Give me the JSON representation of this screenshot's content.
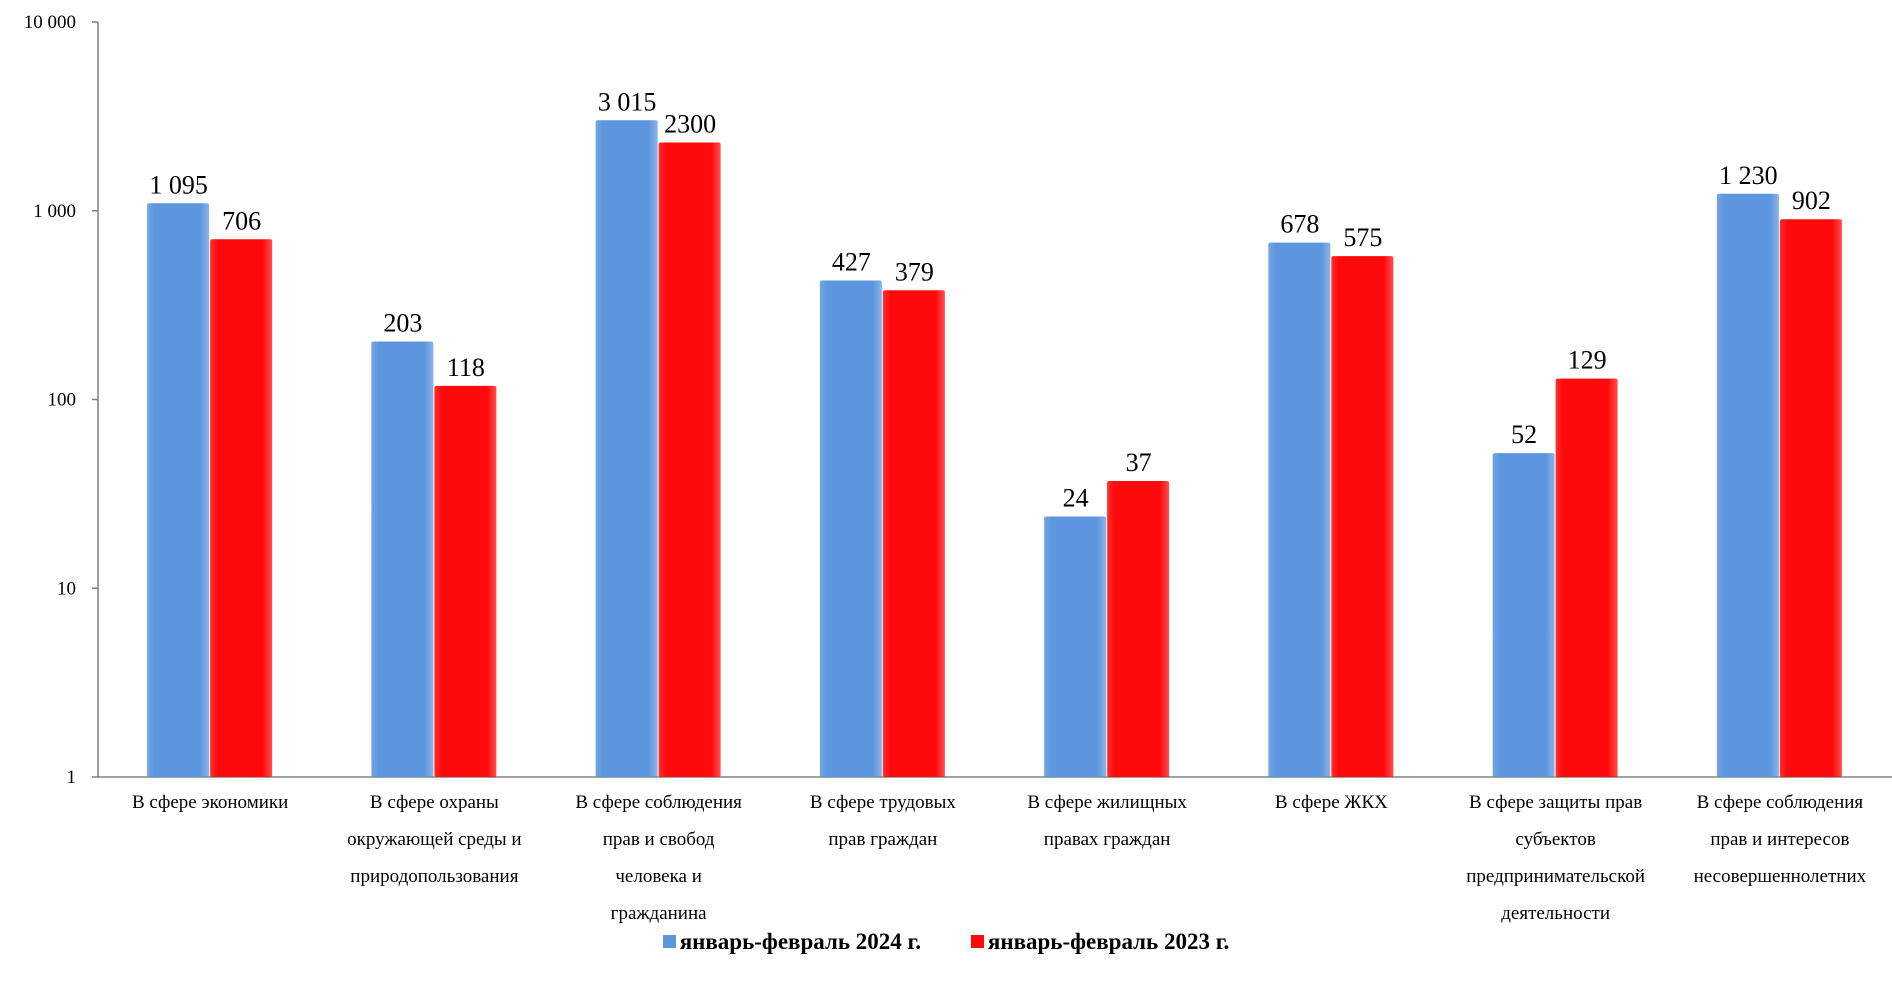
{
  "chart_data": {
    "type": "bar",
    "yscale": "log",
    "ylim": [
      1,
      10000
    ],
    "ytick_labels": [
      "1",
      "10",
      "100",
      "1 000",
      "10 000"
    ],
    "categories": [
      [
        "В сфере экономики"
      ],
      [
        "В сфере охраны",
        "окружающей среды и",
        "природопользования"
      ],
      [
        "В сфере соблюдения",
        "прав и свобод",
        "человека и",
        "гражданина"
      ],
      [
        "В сфере трудовых",
        "прав граждан"
      ],
      [
        "В сфере жилищных",
        "правах граждан"
      ],
      [
        "В сфере ЖКХ"
      ],
      [
        "В сфере защиты прав",
        "субъектов",
        "предпринимательской",
        "деятельности"
      ],
      [
        "В сфере соблюдения",
        "прав и интересов",
        "несовершеннолетних"
      ]
    ],
    "series": [
      {
        "name": "январь-февраль 2024 г.",
        "color": "#5B96DE",
        "values": [
          1095,
          203,
          3015,
          427,
          24,
          678,
          52,
          1230
        ],
        "labels": [
          "1 095",
          "203",
          "3 015",
          "427",
          "24",
          "678",
          "52",
          "1 230"
        ]
      },
      {
        "name": "январь-февраль 2023 г.",
        "color": "#FF0A0A",
        "values": [
          706,
          118,
          2300,
          379,
          37,
          575,
          129,
          902
        ],
        "labels": [
          "706",
          "118",
          "2300",
          "379",
          "37",
          "575",
          "129",
          "902"
        ]
      }
    ],
    "legend_position": "bottom",
    "grid": false
  }
}
